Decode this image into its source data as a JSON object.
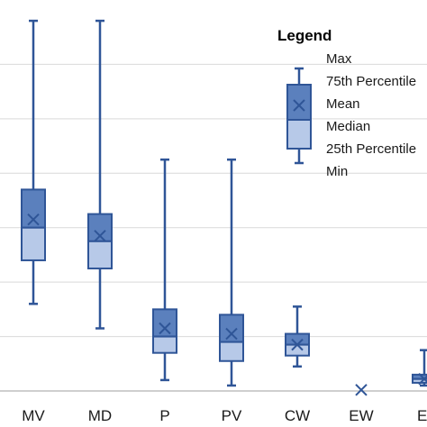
{
  "chart_data": {
    "type": "box",
    "categories": [
      "MV",
      "MD",
      "P",
      "PV",
      "CW",
      "EW",
      "EI"
    ],
    "grid": true,
    "legend_placement": "top-right",
    "series": [
      {
        "category": "MV",
        "min": 1.6,
        "q1": 2.4,
        "median": 3.0,
        "mean": 3.15,
        "q3": 3.7,
        "max": 6.8
      },
      {
        "category": "MD",
        "min": 1.15,
        "q1": 2.25,
        "median": 2.75,
        "mean": 2.85,
        "q3": 3.25,
        "max": 6.8
      },
      {
        "category": "P",
        "min": 0.2,
        "q1": 0.7,
        "median": 1.0,
        "mean": 1.15,
        "q3": 1.5,
        "max": 4.25
      },
      {
        "category": "PV",
        "min": 0.1,
        "q1": 0.55,
        "median": 0.9,
        "mean": 1.05,
        "q3": 1.4,
        "max": 4.25
      },
      {
        "category": "CW",
        "min": 0.45,
        "q1": 0.65,
        "median": 0.85,
        "mean": 0.85,
        "q3": 1.05,
        "max": 1.55
      },
      {
        "category": "EW",
        "min": 0.02,
        "q1": 0.02,
        "median": 0.02,
        "mean": 0.02,
        "q3": 0.02,
        "max": 0.02
      },
      {
        "category": "EI",
        "min": 0.1,
        "q1": 0.15,
        "median": 0.22,
        "mean": 0.22,
        "q3": 0.3,
        "max": 0.75
      }
    ],
    "legend": {
      "title": "Legend",
      "items": [
        "Max",
        "75th Percentile",
        "Mean",
        "Median",
        "25th Percentile",
        "Min"
      ]
    },
    "colors": {
      "box_upper": "#5b80bd",
      "box_lower": "#b7c9e8",
      "stroke": "#2f5597",
      "grid": "#d9d9d9",
      "axis": "#bfbfbf"
    }
  }
}
